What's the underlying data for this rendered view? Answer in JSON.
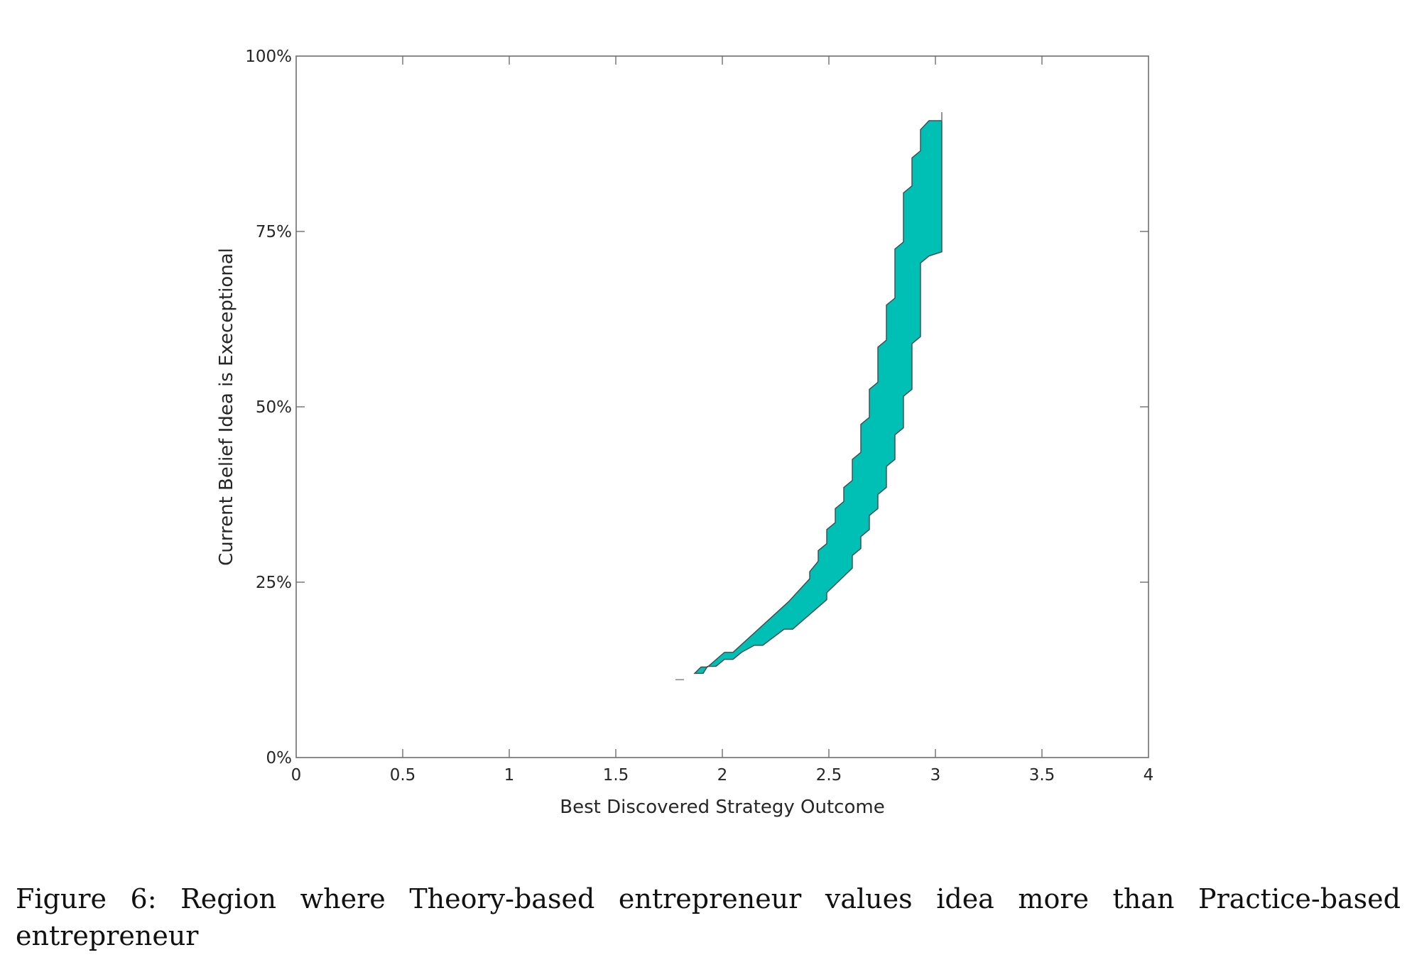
{
  "chart_data": {
    "type": "area",
    "title": "",
    "xlabel": "Best Discovered Strategy Outcome",
    "ylabel": "Current Belief Idea is Execeptional",
    "xlim": [
      0,
      4
    ],
    "ylim": [
      0,
      100
    ],
    "x_ticks": [
      0,
      0.5,
      1,
      1.5,
      2,
      2.5,
      3,
      3.5,
      4
    ],
    "x_tick_labels": [
      "0",
      "0.5",
      "1",
      "1.5",
      "2",
      "2.5",
      "3",
      "3.5",
      "4"
    ],
    "y_ticks": [
      0,
      25,
      50,
      75,
      100
    ],
    "y_tick_labels": [
      "0%",
      "25%",
      "50%",
      "75%",
      "100%"
    ],
    "grid": false,
    "legend": null,
    "fill_color": "#00BFB5",
    "edge_color": "#3f4a4a",
    "series": [
      {
        "name": "Region where Theory-based values idea more than Practice-based",
        "upper_boundary": [
          [
            1.87,
            12.0
          ],
          [
            1.9,
            12.9
          ],
          [
            1.93,
            12.9
          ],
          [
            2.01,
            15.0
          ],
          [
            2.05,
            15.0
          ],
          [
            2.31,
            22.2
          ],
          [
            2.41,
            25.5
          ],
          [
            2.41,
            26.5
          ],
          [
            2.45,
            28.0
          ],
          [
            2.45,
            29.5
          ],
          [
            2.49,
            30.5
          ],
          [
            2.49,
            32.5
          ],
          [
            2.53,
            33.5
          ],
          [
            2.53,
            35.5
          ],
          [
            2.57,
            36.5
          ],
          [
            2.57,
            38.5
          ],
          [
            2.61,
            39.5
          ],
          [
            2.61,
            42.5
          ],
          [
            2.65,
            43.5
          ],
          [
            2.65,
            47.5
          ],
          [
            2.69,
            48.5
          ],
          [
            2.69,
            52.5
          ],
          [
            2.73,
            53.5
          ],
          [
            2.73,
            58.5
          ],
          [
            2.77,
            59.5
          ],
          [
            2.77,
            64.5
          ],
          [
            2.81,
            65.5
          ],
          [
            2.81,
            72.5
          ],
          [
            2.85,
            73.5
          ],
          [
            2.85,
            80.5
          ],
          [
            2.89,
            81.5
          ],
          [
            2.89,
            85.5
          ],
          [
            2.93,
            86.5
          ],
          [
            2.93,
            89.5
          ],
          [
            2.97,
            90.8
          ]
        ],
        "lower_boundary": [
          [
            2.97,
            71.5
          ],
          [
            2.93,
            70.5
          ],
          [
            2.93,
            60.0
          ],
          [
            2.89,
            59.0
          ],
          [
            2.89,
            52.5
          ],
          [
            2.85,
            51.5
          ],
          [
            2.85,
            47.0
          ],
          [
            2.81,
            46.0
          ],
          [
            2.81,
            42.5
          ],
          [
            2.77,
            41.5
          ],
          [
            2.77,
            38.5
          ],
          [
            2.73,
            37.5
          ],
          [
            2.73,
            35.5
          ],
          [
            2.69,
            34.5
          ],
          [
            2.69,
            32.5
          ],
          [
            2.65,
            31.5
          ],
          [
            2.65,
            29.8
          ],
          [
            2.61,
            28.8
          ],
          [
            2.61,
            27.0
          ],
          [
            2.49,
            23.5
          ],
          [
            2.49,
            22.5
          ],
          [
            2.33,
            18.3
          ],
          [
            2.29,
            18.3
          ],
          [
            2.19,
            16.0
          ],
          [
            2.15,
            16.0
          ],
          [
            2.09,
            15.0
          ],
          [
            2.05,
            14.0
          ],
          [
            2.01,
            14.0
          ],
          [
            1.97,
            13.0
          ],
          [
            1.93,
            13.0
          ],
          [
            1.91,
            12.0
          ]
        ],
        "tip_line": {
          "x": 3.03,
          "y_from": 90.8,
          "y_to": 92.0
        },
        "stray_mark": {
          "x_from": 1.78,
          "x_to": 1.82,
          "y": 11.1
        }
      }
    ]
  },
  "caption": {
    "text": "Figure 6: Region where Theory-based entrepreneur values idea more than Practice-based entrepreneur"
  }
}
